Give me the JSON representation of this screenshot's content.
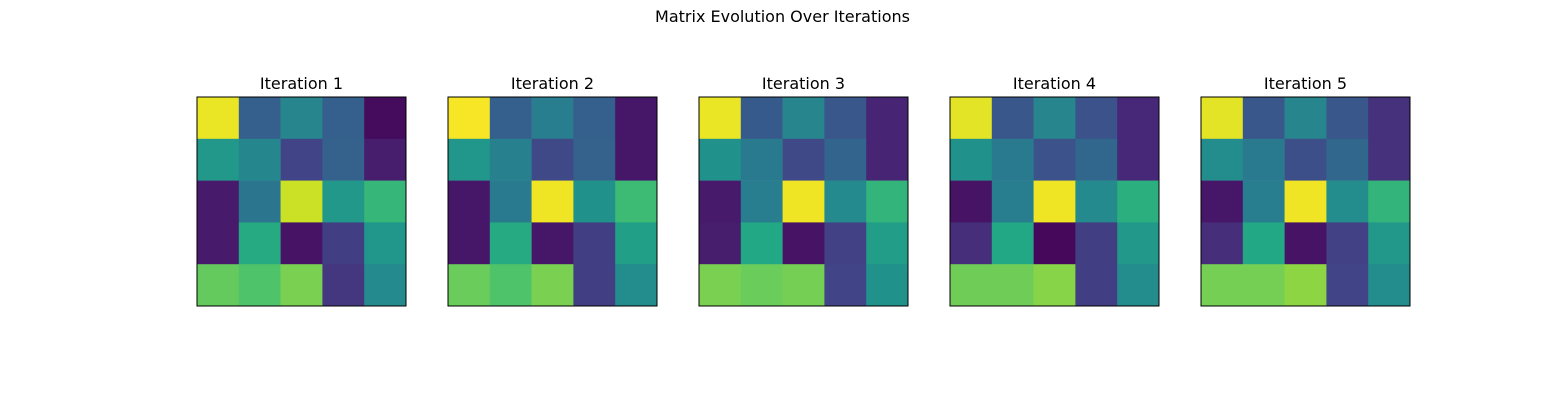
{
  "figure": {
    "title": "Matrix Evolution Over Iterations"
  },
  "colormap": "viridis",
  "chart_data": [
    {
      "type": "heatmap",
      "title": "Iteration 1",
      "rows": 5,
      "cols": 5,
      "values": [
        [
          0.97,
          0.3,
          0.45,
          0.3,
          0.03
        ],
        [
          0.53,
          0.46,
          0.2,
          0.31,
          0.08
        ],
        [
          0.07,
          0.39,
          0.92,
          0.53,
          0.66
        ],
        [
          0.07,
          0.61,
          0.05,
          0.18,
          0.52
        ],
        [
          0.76,
          0.72,
          0.8,
          0.16,
          0.47
        ]
      ]
    },
    {
      "type": "heatmap",
      "title": "Iteration 2",
      "rows": 5,
      "cols": 5,
      "values": [
        [
          0.99,
          0.3,
          0.42,
          0.3,
          0.06
        ],
        [
          0.52,
          0.43,
          0.22,
          0.31,
          0.06
        ],
        [
          0.06,
          0.41,
          0.98,
          0.5,
          0.68
        ],
        [
          0.06,
          0.61,
          0.06,
          0.18,
          0.56
        ],
        [
          0.77,
          0.72,
          0.8,
          0.18,
          0.48
        ]
      ]
    },
    {
      "type": "heatmap",
      "title": "Iteration 3",
      "rows": 5,
      "cols": 5,
      "values": [
        [
          0.97,
          0.28,
          0.45,
          0.27,
          0.1
        ],
        [
          0.5,
          0.41,
          0.22,
          0.32,
          0.1
        ],
        [
          0.07,
          0.42,
          0.98,
          0.47,
          0.65
        ],
        [
          0.08,
          0.6,
          0.05,
          0.19,
          0.55
        ],
        [
          0.8,
          0.77,
          0.79,
          0.2,
          0.5
        ]
      ]
    },
    {
      "type": "heatmap",
      "title": "Iteration 4",
      "rows": 5,
      "cols": 5,
      "values": [
        [
          0.96,
          0.27,
          0.45,
          0.25,
          0.11
        ],
        [
          0.5,
          0.41,
          0.25,
          0.33,
          0.11
        ],
        [
          0.05,
          0.42,
          0.98,
          0.47,
          0.63
        ],
        [
          0.13,
          0.6,
          0.02,
          0.18,
          0.53
        ],
        [
          0.78,
          0.78,
          0.82,
          0.18,
          0.48
        ]
      ]
    },
    {
      "type": "heatmap",
      "title": "Iteration 5",
      "rows": 5,
      "cols": 5,
      "values": [
        [
          0.96,
          0.27,
          0.45,
          0.27,
          0.14
        ],
        [
          0.48,
          0.41,
          0.24,
          0.33,
          0.14
        ],
        [
          0.06,
          0.42,
          0.98,
          0.48,
          0.65
        ],
        [
          0.13,
          0.6,
          0.05,
          0.19,
          0.53
        ],
        [
          0.79,
          0.79,
          0.83,
          0.2,
          0.48
        ]
      ]
    }
  ]
}
